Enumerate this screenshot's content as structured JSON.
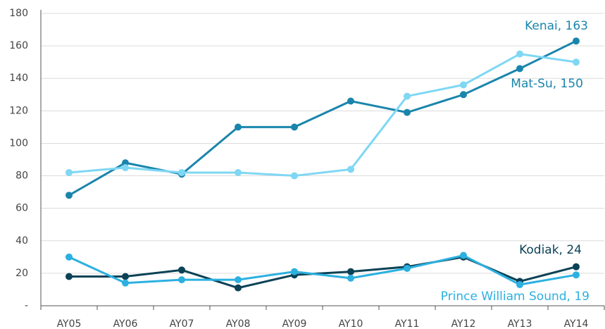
{
  "chart_data": {
    "type": "line",
    "categories": [
      "AY05",
      "AY06",
      "AY07",
      "AY08",
      "AY09",
      "AY10",
      "AY11",
      "AY12",
      "AY13",
      "AY14"
    ],
    "series": [
      {
        "name": "Kenai",
        "color": "#1a85ac",
        "label": "Kenai,  163",
        "values": [
          68,
          88,
          81,
          110,
          110,
          126,
          119,
          130,
          146,
          163
        ]
      },
      {
        "name": "Mat-Su",
        "color": "#7fd7f4",
        "label": "Mat-Su,  150",
        "values": [
          82,
          85,
          82,
          82,
          80,
          84,
          129,
          136,
          155,
          150
        ]
      },
      {
        "name": "Kodiak",
        "color": "#0b4256",
        "label": "Kodiak,  24",
        "values": [
          18,
          18,
          22,
          11,
          19,
          21,
          24,
          30,
          15,
          24
        ]
      },
      {
        "name": "Prince William Sound",
        "color": "#2cb0e0",
        "label": "Prince William Sound,  19",
        "values": [
          30,
          14,
          16,
          16,
          21,
          17,
          23,
          31,
          13,
          19
        ]
      }
    ],
    "ylim": [
      0,
      180
    ],
    "yticks": [
      {
        "value": 0,
        "label": "-"
      },
      20,
      40,
      60,
      80,
      100,
      120,
      140,
      160,
      180
    ],
    "grid": true
  }
}
